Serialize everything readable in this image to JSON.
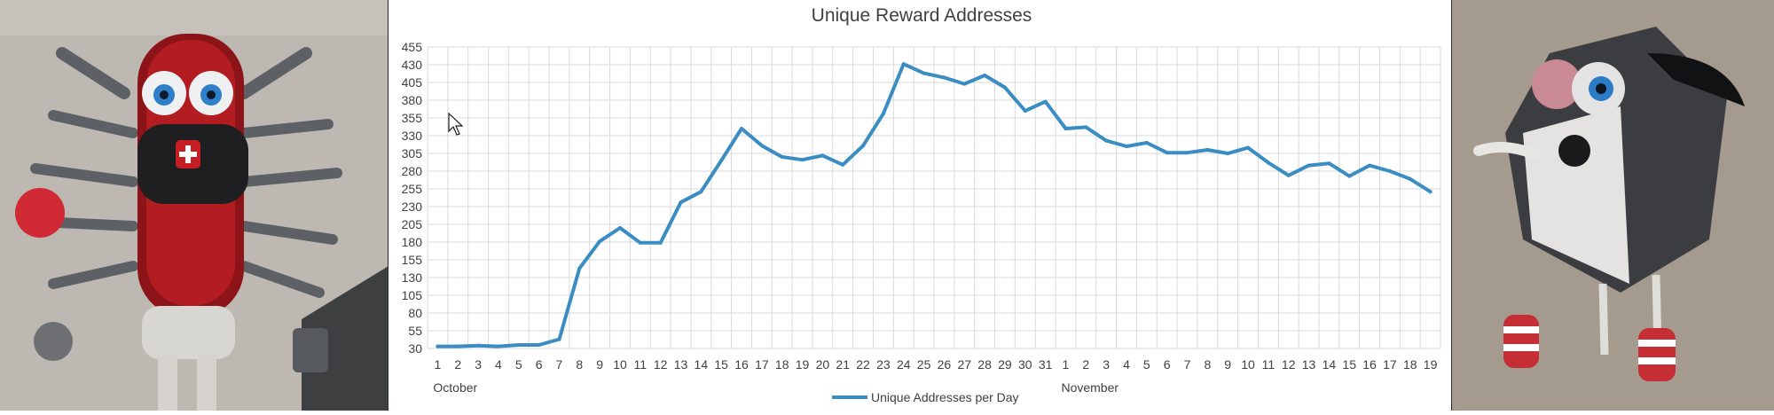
{
  "chart_data": {
    "type": "line",
    "title": "Unique Reward Addresses",
    "xlabel": "",
    "ylabel": "",
    "ylim": [
      30,
      455
    ],
    "yticks": [
      30,
      55,
      80,
      105,
      130,
      155,
      180,
      205,
      230,
      255,
      280,
      305,
      330,
      355,
      380,
      405,
      430,
      455
    ],
    "grid": true,
    "legend_position": "bottom",
    "month_labels": [
      {
        "text": "October",
        "category_index": 0
      },
      {
        "text": "November",
        "category_index": 31
      }
    ],
    "categories": [
      "1",
      "2",
      "3",
      "4",
      "5",
      "6",
      "7",
      "8",
      "9",
      "10",
      "11",
      "12",
      "13",
      "14",
      "15",
      "16",
      "17",
      "18",
      "19",
      "20",
      "21",
      "22",
      "23",
      "24",
      "25",
      "26",
      "27",
      "28",
      "29",
      "30",
      "31",
      "1",
      "2",
      "3",
      "4",
      "5",
      "6",
      "7",
      "8",
      "9",
      "10",
      "11",
      "12",
      "13",
      "14",
      "15",
      "16",
      "17",
      "18",
      "19"
    ],
    "series": [
      {
        "name": "Unique Addresses per Day",
        "color": "#3a8dc2",
        "values": [
          33,
          33,
          34,
          33,
          35,
          35,
          43,
          143,
          181,
          200,
          179,
          179,
          236,
          251,
          295,
          340,
          316,
          300,
          296,
          302,
          289,
          316,
          361,
          431,
          418,
          412,
          403,
          415,
          398,
          365,
          378,
          340,
          342,
          323,
          315,
          320,
          306,
          306,
          310,
          305,
          313,
          292,
          274,
          288,
          291,
          273,
          288,
          280,
          269,
          251
        ]
      }
    ]
  },
  "decor": {
    "left_photo": "street-art-robot-mural",
    "right_photo": "street-art-dog-mural",
    "cursor_icon": "mouse-pointer-icon"
  }
}
